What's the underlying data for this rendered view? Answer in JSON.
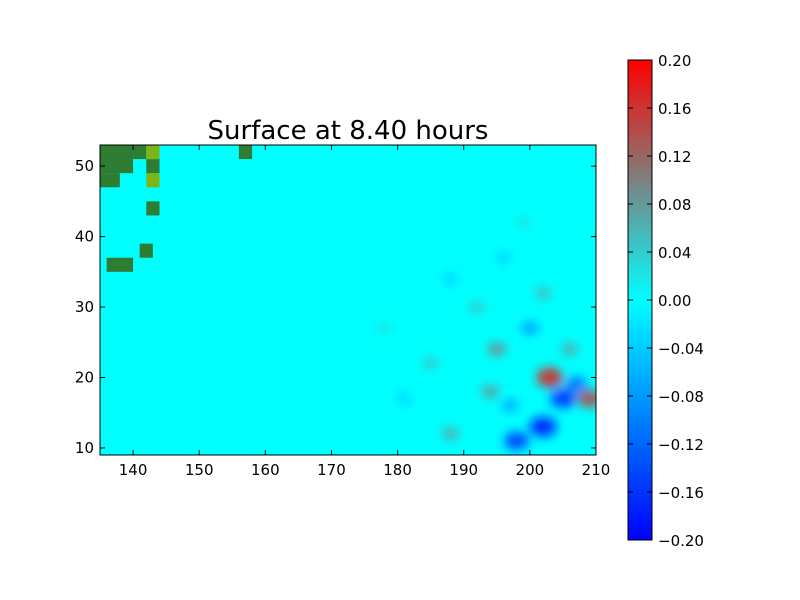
{
  "chart_data": {
    "type": "heatmap",
    "title": "Surface at 8.40 hours",
    "xlabel": "",
    "ylabel": "",
    "xlim": [
      135,
      210
    ],
    "ylim": [
      9,
      53
    ],
    "x_ticks": [
      "140",
      "150",
      "160",
      "170",
      "180",
      "190",
      "200",
      "210"
    ],
    "y_ticks": [
      "10",
      "20",
      "30",
      "40",
      "50"
    ],
    "colorbar": {
      "range": [
        -0.2,
        0.2
      ],
      "ticks": [
        "0.20",
        "0.16",
        "0.12",
        "0.08",
        "0.04",
        "0.00",
        "−0.04",
        "−0.08",
        "−0.12",
        "−0.16",
        "−0.20"
      ],
      "colors": {
        "min": "#0000ff",
        "mid": "#00ffff",
        "max": "#ff0000"
      }
    },
    "background_value": 0.0,
    "land_color": "#2e7d32",
    "land_highlight_color": "#7cb518",
    "land_cells": [
      [
        135,
        53,
        140,
        49
      ],
      [
        135,
        49,
        138,
        47
      ],
      [
        140,
        53,
        142,
        51
      ],
      [
        142,
        51,
        144,
        49
      ],
      [
        142,
        45,
        144,
        43
      ],
      [
        141,
        39,
        143,
        37
      ],
      [
        136,
        37,
        140,
        35
      ],
      [
        156,
        53,
        158,
        51
      ]
    ],
    "land_highlight_cells": [
      [
        142,
        53,
        144,
        51
      ],
      [
        142,
        49,
        144,
        47
      ]
    ],
    "anomalies": [
      {
        "x": 203,
        "y": 20,
        "value": 0.18
      },
      {
        "x": 205,
        "y": 17,
        "value": -0.17
      },
      {
        "x": 202,
        "y": 13,
        "value": -0.19
      },
      {
        "x": 198,
        "y": 11,
        "value": -0.16
      },
      {
        "x": 209,
        "y": 17,
        "value": 0.15
      },
      {
        "x": 207,
        "y": 19,
        "value": -0.12
      },
      {
        "x": 195,
        "y": 24,
        "value": 0.09
      },
      {
        "x": 200,
        "y": 27,
        "value": -0.08
      },
      {
        "x": 194,
        "y": 18,
        "value": 0.08
      },
      {
        "x": 197,
        "y": 16,
        "value": -0.07
      },
      {
        "x": 188,
        "y": 12,
        "value": 0.07
      },
      {
        "x": 185,
        "y": 22,
        "value": 0.05
      },
      {
        "x": 192,
        "y": 30,
        "value": 0.05
      },
      {
        "x": 188,
        "y": 34,
        "value": -0.04
      },
      {
        "x": 196,
        "y": 37,
        "value": -0.04
      },
      {
        "x": 181,
        "y": 17,
        "value": -0.04
      },
      {
        "x": 178,
        "y": 27,
        "value": 0.03
      },
      {
        "x": 199,
        "y": 42,
        "value": 0.03
      },
      {
        "x": 202,
        "y": 32,
        "value": 0.06
      },
      {
        "x": 206,
        "y": 24,
        "value": 0.07
      }
    ]
  }
}
